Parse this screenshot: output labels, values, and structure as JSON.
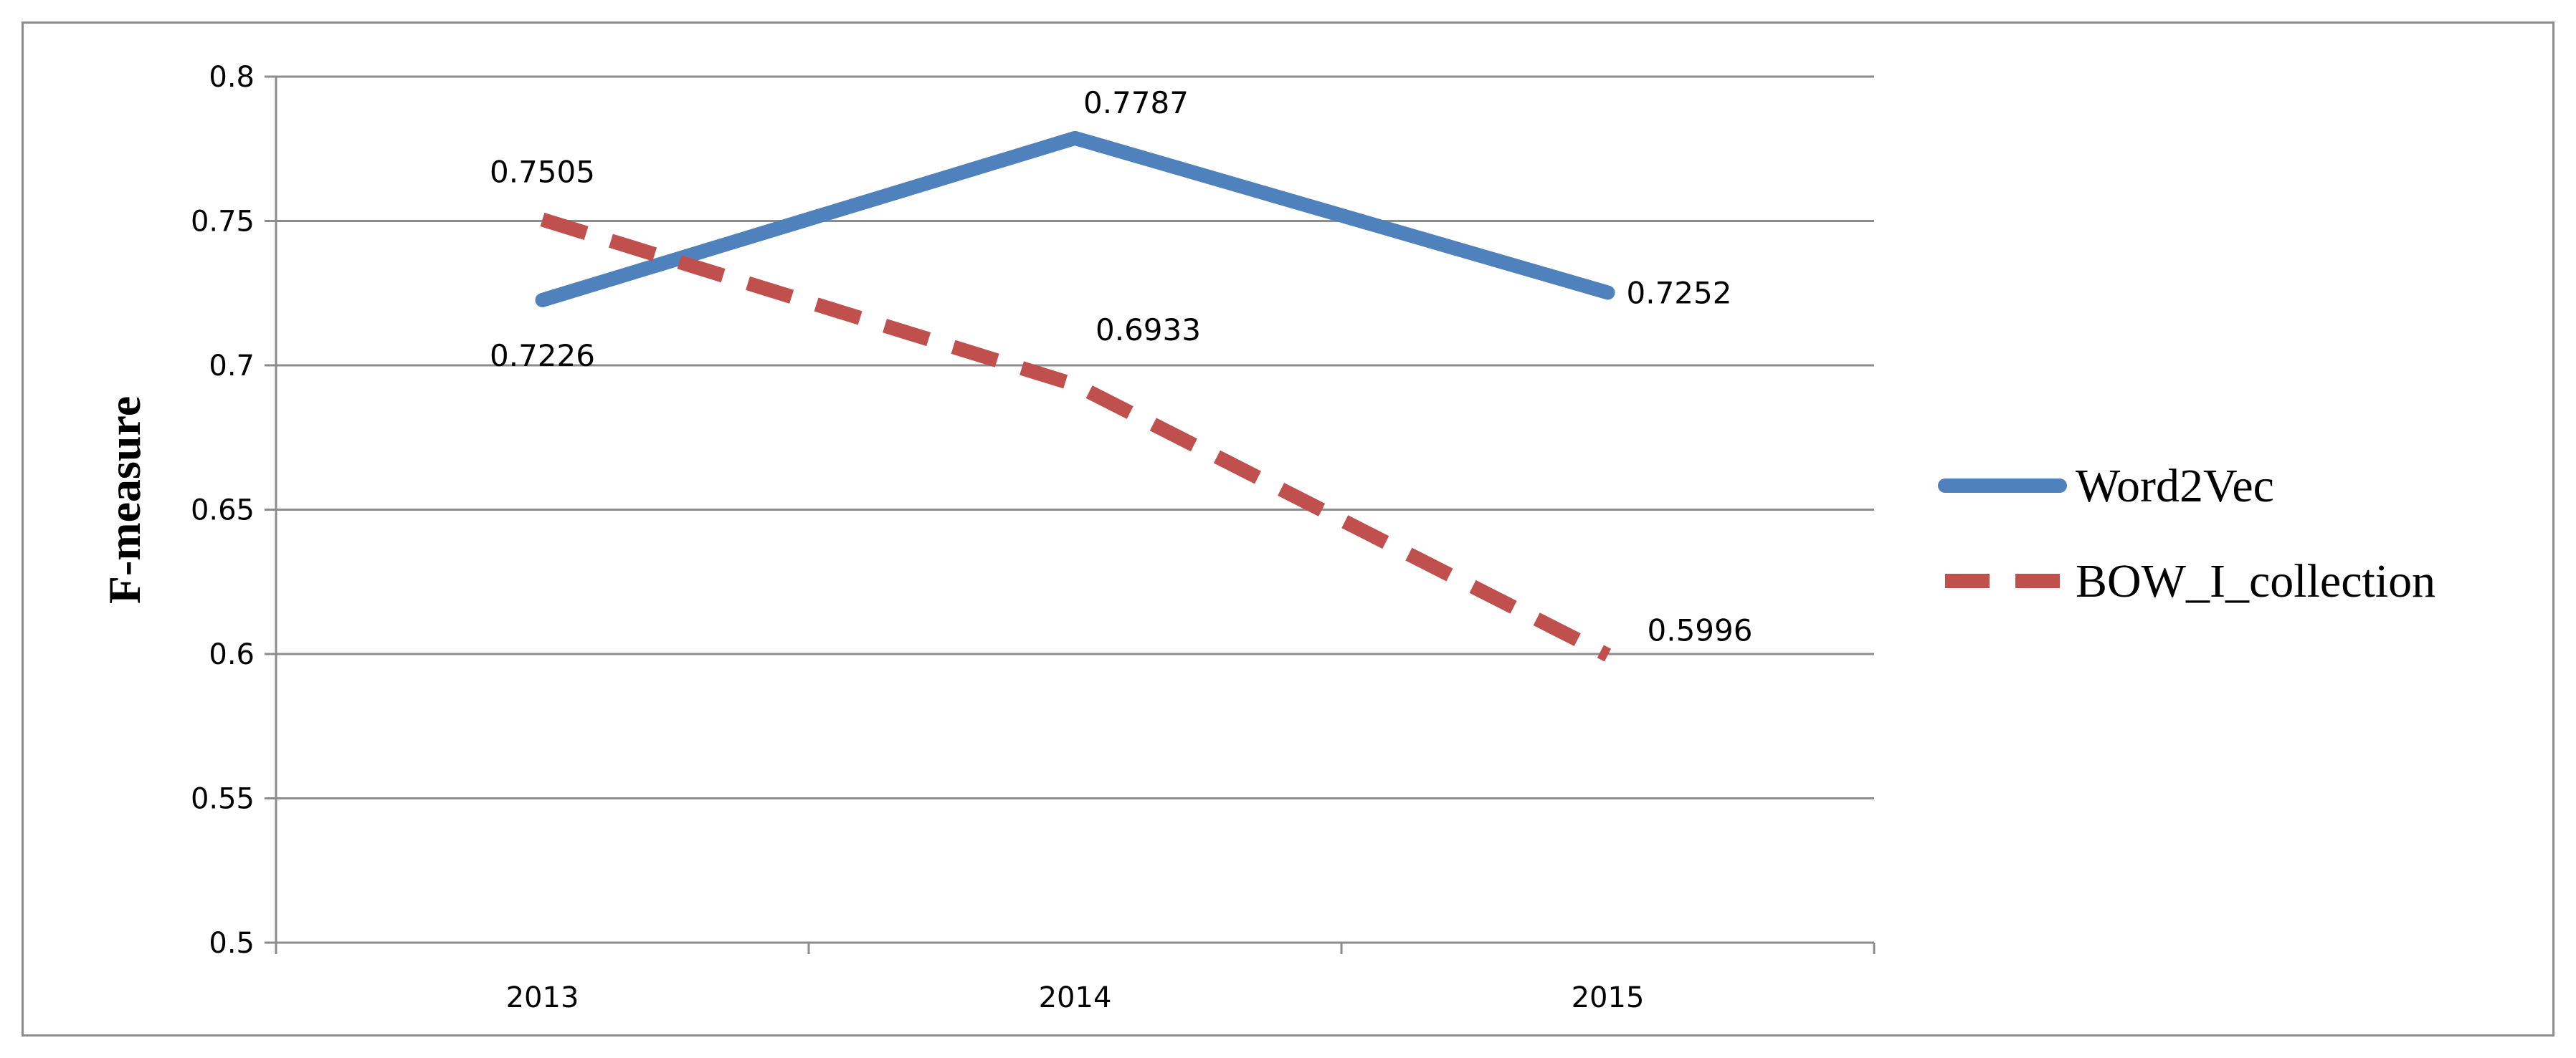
{
  "chart_data": {
    "type": "line",
    "categories": [
      "2013",
      "2014",
      "2015"
    ],
    "ylabel": "F-measure",
    "xlabel": "",
    "ylim": [
      0.5,
      0.8
    ],
    "yticks": [
      "0.5",
      "0.55",
      "0.6",
      "0.65",
      "0.7",
      "0.75",
      "0.8"
    ],
    "grid": true,
    "legend_position": "right",
    "series": [
      {
        "name": "Word2Vec",
        "values": [
          0.7226,
          0.7787,
          0.7252
        ],
        "labels": [
          "0.7226",
          "0.7787",
          "0.7252"
        ],
        "color": "#4f81bd",
        "style": "solid"
      },
      {
        "name": "BOW_I_collection",
        "values": [
          0.7505,
          0.6933,
          0.5996
        ],
        "labels": [
          "0.7505",
          "0.6933",
          "0.5996"
        ],
        "color": "#c0504d",
        "style": "dashed"
      }
    ]
  }
}
